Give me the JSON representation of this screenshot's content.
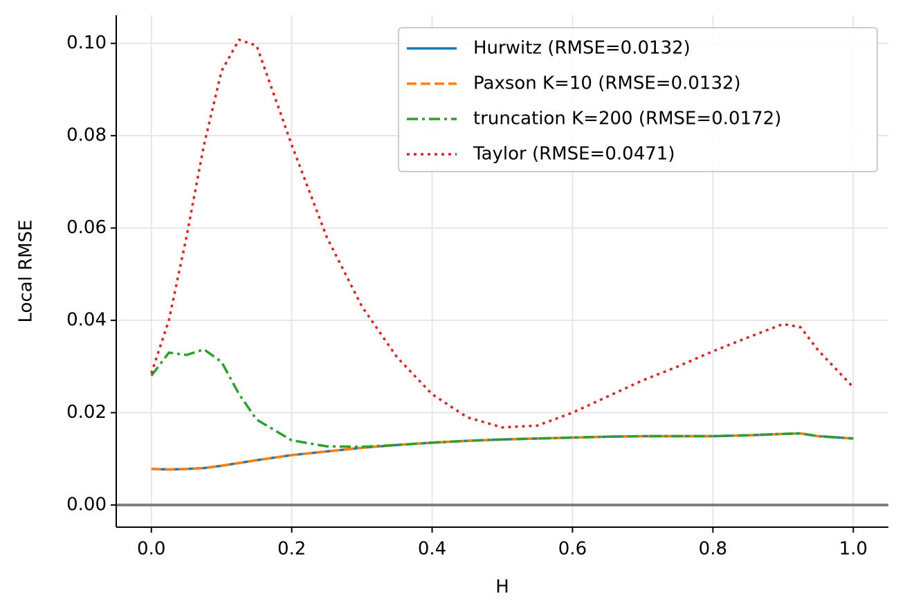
{
  "chart_data": {
    "type": "line",
    "xlabel": "H",
    "ylabel": "Local RMSE",
    "x": [
      0,
      0.025,
      0.05,
      0.075,
      0.1,
      0.125,
      0.15,
      0.2,
      0.25,
      0.3,
      0.35,
      0.4,
      0.45,
      0.5,
      0.55,
      0.6,
      0.65,
      0.7,
      0.75,
      0.8,
      0.85,
      0.9,
      0.925,
      0.95,
      1.0
    ],
    "series": [
      {
        "name": "Hurwitz (RMSE=0.0132)",
        "color": "#1f77b4",
        "dash": "solid",
        "values": [
          0.0078,
          0.0077,
          0.0078,
          0.008,
          0.0085,
          0.0091,
          0.0097,
          0.0108,
          0.0116,
          0.0124,
          0.013,
          0.0135,
          0.0139,
          0.0142,
          0.0144,
          0.0146,
          0.0148,
          0.0149,
          0.0149,
          0.0149,
          0.0151,
          0.0154,
          0.0155,
          0.0149,
          0.0144
        ]
      },
      {
        "name": "Paxson K=10 (RMSE=0.0132)",
        "color": "#ff7f0e",
        "dash": "dashed",
        "values": [
          0.0078,
          0.0077,
          0.0078,
          0.008,
          0.0085,
          0.0091,
          0.0097,
          0.0108,
          0.0116,
          0.0124,
          0.013,
          0.0135,
          0.0139,
          0.0142,
          0.0144,
          0.0146,
          0.0148,
          0.0149,
          0.0149,
          0.0149,
          0.0151,
          0.0154,
          0.0155,
          0.0149,
          0.0144
        ]
      },
      {
        "name": "truncation K=200 (RMSE=0.0172)",
        "color": "#2ca02c",
        "dash": "dashdot",
        "values": [
          0.028,
          0.033,
          0.0325,
          0.0337,
          0.031,
          0.024,
          0.0185,
          0.014,
          0.0127,
          0.0126,
          0.013,
          0.0135,
          0.0139,
          0.0142,
          0.0144,
          0.0146,
          0.0148,
          0.0149,
          0.0149,
          0.0149,
          0.0151,
          0.0154,
          0.0155,
          0.0149,
          0.0144
        ]
      },
      {
        "name": "Taylor (RMSE=0.0471)",
        "color": "#d62728",
        "dash": "dotted",
        "values": [
          0.0285,
          0.04,
          0.058,
          0.078,
          0.094,
          0.1008,
          0.0995,
          0.078,
          0.058,
          0.043,
          0.032,
          0.024,
          0.019,
          0.0168,
          0.0172,
          0.02,
          0.0235,
          0.027,
          0.03,
          0.0333,
          0.0363,
          0.0392,
          0.0385,
          0.0335,
          0.0255
        ]
      }
    ],
    "xlim": [
      -0.05,
      1.05
    ],
    "ylim": [
      -0.0048,
      0.1061
    ],
    "xticks": [
      {
        "value": 0,
        "label": "0.0"
      },
      0.2,
      0.4,
      0.6,
      0.8,
      {
        "value": 1,
        "label": "1.0"
      }
    ],
    "yticks": [
      {
        "value": 0,
        "label": "0.00"
      },
      {
        "value": 0.02,
        "label": "0.02"
      },
      {
        "value": 0.04,
        "label": "0.04"
      },
      {
        "value": 0.06,
        "label": "0.06"
      },
      {
        "value": 0.08,
        "label": "0.08"
      },
      {
        "value": 0.1,
        "label": "0.10"
      }
    ],
    "hline": {
      "value": 0,
      "color": "#808080"
    },
    "grid": true,
    "legend": "upper right"
  }
}
